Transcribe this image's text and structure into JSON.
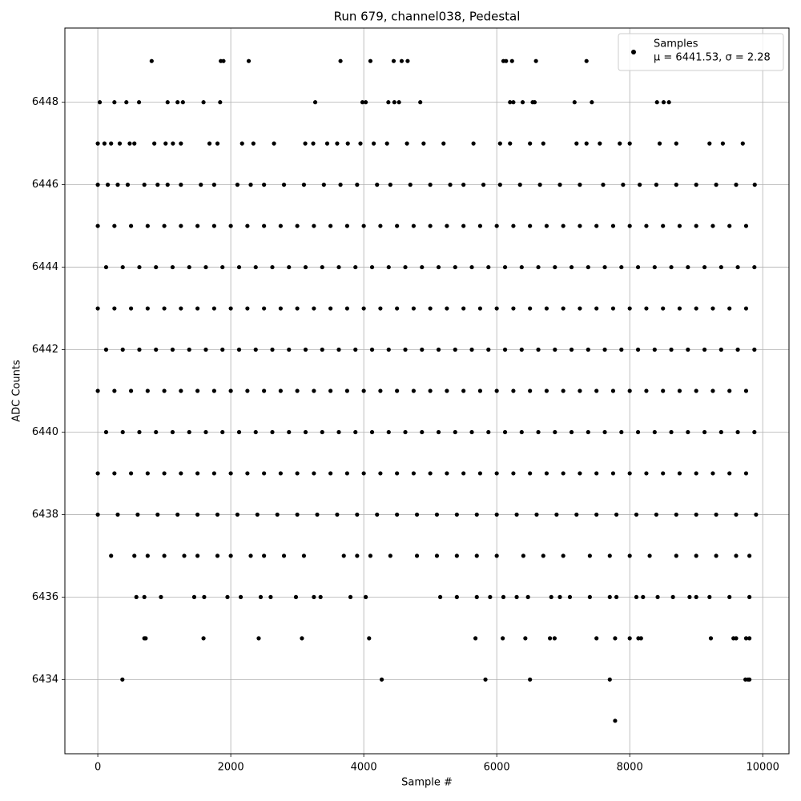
{
  "chart_data": {
    "type": "scatter",
    "title": "Run 679, channel038, Pedestal",
    "xlabel": "Sample #",
    "ylabel": "ADC Counts",
    "xlim": [
      -495,
      10395
    ],
    "ylim": [
      6432.2,
      6449.8
    ],
    "xticks": [
      0,
      2000,
      4000,
      6000,
      8000,
      10000
    ],
    "yticks": [
      6434,
      6436,
      6438,
      6440,
      6442,
      6444,
      6446,
      6448
    ],
    "grid": true,
    "legend": "upper right",
    "legend_stats": "μ = 6441.53, σ = 2.28",
    "series": [
      {
        "name": "Samples",
        "color": "#000000",
        "x": [
          810,
          1850,
          1890,
          2270,
          3650,
          4100,
          4450,
          4570,
          4660,
          6100,
          6140,
          6230,
          6590,
          7350,
          30,
          250,
          430,
          620,
          1050,
          1200,
          1280,
          1590,
          1840,
          3270,
          3980,
          4030,
          4370,
          4460,
          4530,
          4850,
          6200,
          6250,
          6390,
          6540,
          6570,
          7170,
          7430,
          8410,
          8510,
          8590,
          0,
          100,
          200,
          330,
          480,
          550,
          850,
          1020,
          1130,
          1250,
          1680,
          1800,
          2170,
          2340,
          2650,
          3120,
          3240,
          3450,
          3600,
          3760,
          3950,
          4150,
          4350,
          4650,
          4900,
          5200,
          5650,
          6050,
          6200,
          6500,
          6700,
          7200,
          7350,
          7550,
          7850,
          8000,
          8450,
          8700,
          9200,
          9400,
          9700,
          0,
          150,
          300,
          450,
          700,
          900,
          1050,
          1250,
          1550,
          1750,
          2100,
          2300,
          2500,
          2800,
          3100,
          3400,
          3650,
          3900,
          4200,
          4400,
          4700,
          5000,
          5300,
          5500,
          5800,
          6050,
          6350,
          6650,
          6950,
          7250,
          7600,
          7900,
          8150,
          8400,
          8700,
          9000,
          9300,
          9600,
          9880,
          0,
          250,
          500,
          750,
          1000,
          1250,
          1500,
          1750,
          2000,
          2250,
          2500,
          2750,
          3000,
          3250,
          3500,
          3750,
          4000,
          4250,
          4500,
          4750,
          5000,
          5250,
          5500,
          5750,
          6000,
          6250,
          6500,
          6750,
          7000,
          7250,
          7500,
          7750,
          8000,
          8250,
          8500,
          8750,
          9000,
          9250,
          9500,
          9750,
          125,
          375,
          625,
          875,
          1125,
          1375,
          1625,
          1875,
          2125,
          2375,
          2625,
          2875,
          3125,
          3375,
          3625,
          3875,
          4125,
          4375,
          4625,
          4875,
          5125,
          5375,
          5625,
          5875,
          6125,
          6375,
          6625,
          6875,
          7125,
          7375,
          7625,
          7875,
          8125,
          8375,
          8625,
          8875,
          9125,
          9375,
          9625,
          9875,
          0,
          250,
          500,
          750,
          1000,
          1250,
          1500,
          1750,
          2000,
          2250,
          2500,
          2750,
          3000,
          3250,
          3500,
          3750,
          4000,
          4250,
          4500,
          4750,
          5000,
          5250,
          5500,
          5750,
          6000,
          6250,
          6500,
          6750,
          7000,
          7250,
          7500,
          7750,
          8000,
          8250,
          8500,
          8750,
          9000,
          9250,
          9500,
          9750,
          125,
          375,
          625,
          875,
          1125,
          1375,
          1625,
          1875,
          2125,
          2375,
          2625,
          2875,
          3125,
          3375,
          3625,
          3875,
          4125,
          4375,
          4625,
          4875,
          5125,
          5375,
          5625,
          5875,
          6125,
          6375,
          6625,
          6875,
          7125,
          7375,
          7625,
          7875,
          8125,
          8375,
          8625,
          8875,
          9125,
          9375,
          9625,
          9875,
          0,
          250,
          500,
          750,
          1000,
          1250,
          1500,
          1750,
          2000,
          2250,
          2500,
          2750,
          3000,
          3250,
          3500,
          3750,
          4000,
          4250,
          4500,
          4750,
          5000,
          5250,
          5500,
          5750,
          6000,
          6250,
          6500,
          6750,
          7000,
          7250,
          7500,
          7750,
          8000,
          8250,
          8500,
          8750,
          9000,
          9250,
          9500,
          9750,
          125,
          375,
          625,
          875,
          1125,
          1375,
          1625,
          1875,
          2125,
          2375,
          2625,
          2875,
          3125,
          3375,
          3625,
          3875,
          4125,
          4375,
          4625,
          4875,
          5125,
          5375,
          5625,
          5875,
          6125,
          6375,
          6625,
          6875,
          7125,
          7375,
          7625,
          7875,
          8125,
          8375,
          8625,
          8875,
          9125,
          9375,
          9625,
          9875,
          0,
          250,
          500,
          750,
          1000,
          1250,
          1500,
          1750,
          2000,
          2250,
          2500,
          2750,
          3000,
          3250,
          3500,
          3750,
          4000,
          4250,
          4500,
          4750,
          5000,
          5250,
          5500,
          5750,
          6000,
          6250,
          6500,
          6750,
          7000,
          7250,
          7500,
          7750,
          8000,
          8250,
          8500,
          8750,
          9000,
          9250,
          9500,
          9750,
          0,
          300,
          600,
          900,
          1200,
          1500,
          1800,
          2100,
          2400,
          2700,
          3000,
          3300,
          3600,
          3900,
          4200,
          4500,
          4800,
          5100,
          5400,
          5700,
          6000,
          6300,
          6600,
          6900,
          7200,
          7500,
          7800,
          8100,
          8400,
          8700,
          9000,
          9300,
          9600,
          9900,
          200,
          550,
          750,
          1000,
          1300,
          1500,
          1800,
          2000,
          2300,
          2500,
          2800,
          3100,
          3700,
          3900,
          4100,
          4400,
          4800,
          5100,
          5400,
          5700,
          6000,
          6400,
          6700,
          7000,
          7400,
          7700,
          8000,
          8300,
          8700,
          9000,
          9300,
          9600,
          9800,
          580,
          700,
          950,
          1450,
          1600,
          1950,
          2150,
          2450,
          2600,
          2980,
          3250,
          3350,
          3800,
          4030,
          5150,
          5400,
          5700,
          5900,
          6100,
          6300,
          6470,
          6820,
          6950,
          7100,
          7400,
          7700,
          7800,
          8100,
          8200,
          8420,
          8650,
          8900,
          9000,
          9200,
          9500,
          9800,
          700,
          720,
          1590,
          2420,
          3070,
          4080,
          5680,
          6090,
          6430,
          6800,
          6870,
          7500,
          7780,
          8000,
          8130,
          8170,
          9220,
          9560,
          9600,
          9750,
          9800,
          370,
          4270,
          5830,
          6500,
          7700,
          9740,
          9780,
          9800,
          7780
        ],
        "values": [
          6449,
          6449,
          6449,
          6449,
          6449,
          6449,
          6449,
          6449,
          6449,
          6449,
          6449,
          6449,
          6449,
          6449,
          6448,
          6448,
          6448,
          6448,
          6448,
          6448,
          6448,
          6448,
          6448,
          6448,
          6448,
          6448,
          6448,
          6448,
          6448,
          6448,
          6448,
          6448,
          6448,
          6448,
          6448,
          6448,
          6448,
          6448,
          6448,
          6448,
          6447,
          6447,
          6447,
          6447,
          6447,
          6447,
          6447,
          6447,
          6447,
          6447,
          6447,
          6447,
          6447,
          6447,
          6447,
          6447,
          6447,
          6447,
          6447,
          6447,
          6447,
          6447,
          6447,
          6447,
          6447,
          6447,
          6447,
          6447,
          6447,
          6447,
          6447,
          6447,
          6447,
          6447,
          6447,
          6447,
          6447,
          6447,
          6447,
          6447,
          6447,
          6446,
          6446,
          6446,
          6446,
          6446,
          6446,
          6446,
          6446,
          6446,
          6446,
          6446,
          6446,
          6446,
          6446,
          6446,
          6446,
          6446,
          6446,
          6446,
          6446,
          6446,
          6446,
          6446,
          6446,
          6446,
          6446,
          6446,
          6446,
          6446,
          6446,
          6446,
          6446,
          6446,
          6446,
          6446,
          6446,
          6446,
          6446,
          6446,
          6445,
          6445,
          6445,
          6445,
          6445,
          6445,
          6445,
          6445,
          6445,
          6445,
          6445,
          6445,
          6445,
          6445,
          6445,
          6445,
          6445,
          6445,
          6445,
          6445,
          6445,
          6445,
          6445,
          6445,
          6445,
          6445,
          6445,
          6445,
          6445,
          6445,
          6445,
          6445,
          6445,
          6445,
          6445,
          6445,
          6445,
          6445,
          6445,
          6445,
          6444,
          6444,
          6444,
          6444,
          6444,
          6444,
          6444,
          6444,
          6444,
          6444,
          6444,
          6444,
          6444,
          6444,
          6444,
          6444,
          6444,
          6444,
          6444,
          6444,
          6444,
          6444,
          6444,
          6444,
          6444,
          6444,
          6444,
          6444,
          6444,
          6444,
          6444,
          6444,
          6444,
          6444,
          6444,
          6444,
          6444,
          6444,
          6444,
          6444,
          6443,
          6443,
          6443,
          6443,
          6443,
          6443,
          6443,
          6443,
          6443,
          6443,
          6443,
          6443,
          6443,
          6443,
          6443,
          6443,
          6443,
          6443,
          6443,
          6443,
          6443,
          6443,
          6443,
          6443,
          6443,
          6443,
          6443,
          6443,
          6443,
          6443,
          6443,
          6443,
          6443,
          6443,
          6443,
          6443,
          6443,
          6443,
          6443,
          6443,
          6442,
          6442,
          6442,
          6442,
          6442,
          6442,
          6442,
          6442,
          6442,
          6442,
          6442,
          6442,
          6442,
          6442,
          6442,
          6442,
          6442,
          6442,
          6442,
          6442,
          6442,
          6442,
          6442,
          6442,
          6442,
          6442,
          6442,
          6442,
          6442,
          6442,
          6442,
          6442,
          6442,
          6442,
          6442,
          6442,
          6442,
          6442,
          6442,
          6442,
          6441,
          6441,
          6441,
          6441,
          6441,
          6441,
          6441,
          6441,
          6441,
          6441,
          6441,
          6441,
          6441,
          6441,
          6441,
          6441,
          6441,
          6441,
          6441,
          6441,
          6441,
          6441,
          6441,
          6441,
          6441,
          6441,
          6441,
          6441,
          6441,
          6441,
          6441,
          6441,
          6441,
          6441,
          6441,
          6441,
          6441,
          6441,
          6441,
          6441,
          6440,
          6440,
          6440,
          6440,
          6440,
          6440,
          6440,
          6440,
          6440,
          6440,
          6440,
          6440,
          6440,
          6440,
          6440,
          6440,
          6440,
          6440,
          6440,
          6440,
          6440,
          6440,
          6440,
          6440,
          6440,
          6440,
          6440,
          6440,
          6440,
          6440,
          6440,
          6440,
          6440,
          6440,
          6440,
          6440,
          6440,
          6440,
          6440,
          6440,
          6439,
          6439,
          6439,
          6439,
          6439,
          6439,
          6439,
          6439,
          6439,
          6439,
          6439,
          6439,
          6439,
          6439,
          6439,
          6439,
          6439,
          6439,
          6439,
          6439,
          6439,
          6439,
          6439,
          6439,
          6439,
          6439,
          6439,
          6439,
          6439,
          6439,
          6439,
          6439,
          6439,
          6439,
          6439,
          6439,
          6439,
          6439,
          6439,
          6439,
          6438,
          6438,
          6438,
          6438,
          6438,
          6438,
          6438,
          6438,
          6438,
          6438,
          6438,
          6438,
          6438,
          6438,
          6438,
          6438,
          6438,
          6438,
          6438,
          6438,
          6438,
          6438,
          6438,
          6438,
          6438,
          6438,
          6438,
          6438,
          6438,
          6438,
          6438,
          6438,
          6438,
          6438,
          6437,
          6437,
          6437,
          6437,
          6437,
          6437,
          6437,
          6437,
          6437,
          6437,
          6437,
          6437,
          6437,
          6437,
          6437,
          6437,
          6437,
          6437,
          6437,
          6437,
          6437,
          6437,
          6437,
          6437,
          6437,
          6437,
          6437,
          6437,
          6437,
          6437,
          6437,
          6437,
          6437,
          6436,
          6436,
          6436,
          6436,
          6436,
          6436,
          6436,
          6436,
          6436,
          6436,
          6436,
          6436,
          6436,
          6436,
          6436,
          6436,
          6436,
          6436,
          6436,
          6436,
          6436,
          6436,
          6436,
          6436,
          6436,
          6436,
          6436,
          6436,
          6436,
          6436,
          6436,
          6436,
          6436,
          6436,
          6436,
          6436,
          6435,
          6435,
          6435,
          6435,
          6435,
          6435,
          6435,
          6435,
          6435,
          6435,
          6435,
          6435,
          6435,
          6435,
          6435,
          6435,
          6435,
          6435,
          6435,
          6435,
          6435,
          6434,
          6434,
          6434,
          6434,
          6434,
          6434,
          6434,
          6434,
          6433
        ]
      }
    ]
  }
}
